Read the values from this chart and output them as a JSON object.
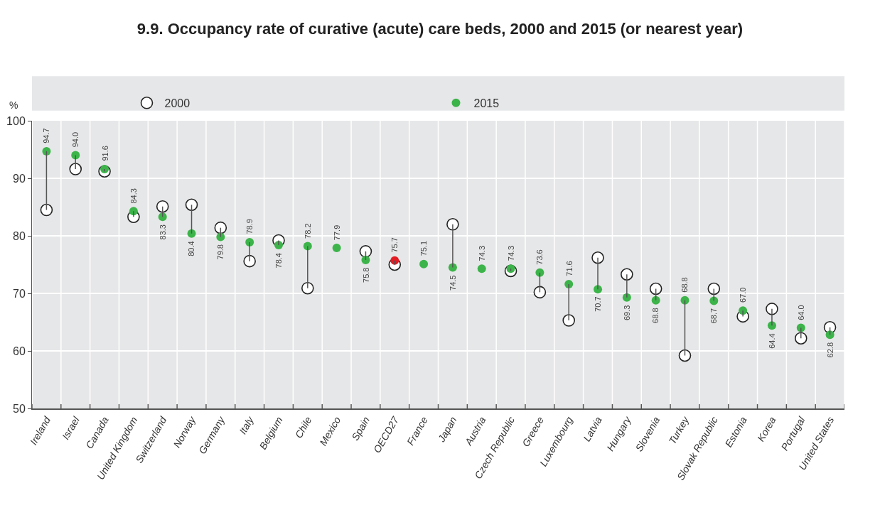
{
  "chart_data": {
    "type": "scatter",
    "title": "9.9. Occupancy rate of curative (acute) care beds, 2000 and 2015 (or nearest year)",
    "ylabel": "%",
    "categories": [
      "Ireland",
      "Israel",
      "Canada",
      "United Kingdom",
      "Switzerland",
      "Norway",
      "Germany",
      "Italy",
      "Belgium",
      "Chile",
      "Mexico",
      "Spain",
      "OECD27",
      "France",
      "Japan",
      "Austria",
      "Czech Republic",
      "Greece",
      "Luxembourg",
      "Latvia",
      "Hungary",
      "Slovenia",
      "Turkey",
      "Slovak Republic",
      "Estonia",
      "Korea",
      "Portugal",
      "United States"
    ],
    "series": [
      {
        "name": "2000",
        "color": "#ffffff",
        "values": [
          84.5,
          91.6,
          91.2,
          83.3,
          85.1,
          85.4,
          81.4,
          75.6,
          79.2,
          70.9,
          null,
          77.3,
          75.0,
          null,
          82.0,
          null,
          73.9,
          70.2,
          65.3,
          76.2,
          73.3,
          70.8,
          59.2,
          70.8,
          66.0,
          67.3,
          62.2,
          64.1
        ]
      },
      {
        "name": "2015",
        "color": "#3cb44a",
        "colors": [
          null,
          null,
          null,
          null,
          null,
          null,
          null,
          null,
          null,
          null,
          null,
          null,
          "#e31b23",
          null,
          null,
          null,
          null,
          null,
          null,
          null,
          null,
          null,
          null,
          null,
          null,
          null,
          null,
          null
        ],
        "values": [
          94.7,
          94.0,
          91.6,
          84.3,
          83.3,
          80.4,
          79.8,
          78.9,
          78.4,
          78.2,
          77.9,
          75.8,
          75.7,
          75.1,
          74.5,
          74.3,
          74.3,
          73.6,
          71.6,
          70.7,
          69.3,
          68.8,
          68.8,
          68.7,
          67.0,
          64.4,
          64.0,
          62.8
        ],
        "value_labels": [
          "94.7",
          "94.0",
          "91.6",
          "84.3",
          "83.3",
          "80.4",
          "79.8",
          "78.9",
          "78.4",
          "78.2",
          "77.9",
          "75.8",
          "75.7",
          "75.1",
          "74.5",
          "74.3",
          "74.3",
          "73.6",
          "71.6",
          "70.7",
          "69.3",
          "68.8",
          "68.8",
          "68.7",
          "67.0",
          "64.4",
          "64.0",
          "62.8"
        ]
      }
    ],
    "ylim": [
      50,
      100
    ],
    "yticks": [
      50,
      60,
      70,
      80,
      90,
      100
    ],
    "grid": true,
    "legend": "top",
    "marker": "circle"
  }
}
